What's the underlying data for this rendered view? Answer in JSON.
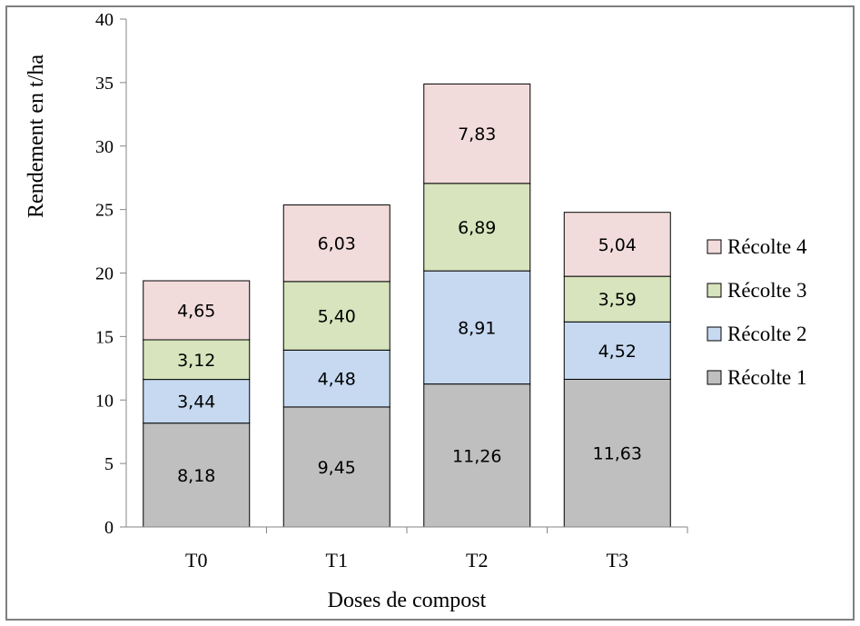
{
  "chart_data": {
    "type": "bar",
    "stacked": true,
    "title": "",
    "xlabel": "Doses de compost",
    "ylabel": "Rendement en t/ha",
    "categories": [
      "T0",
      "T1",
      "T2",
      "T3"
    ],
    "ylim": [
      0,
      40
    ],
    "yticks": [
      0,
      5,
      10,
      15,
      20,
      25,
      30,
      35,
      40
    ],
    "grid": false,
    "legend_position": "right",
    "series": [
      {
        "name": "Récolte 1",
        "color": "#bfbfbf",
        "values": [
          8.18,
          9.45,
          11.26,
          11.63
        ],
        "labels": [
          "8,18",
          "9,45",
          "11,26",
          "11,63"
        ]
      },
      {
        "name": "Récolte 2",
        "color": "#c6d9f1",
        "values": [
          3.44,
          4.48,
          8.91,
          4.52
        ],
        "labels": [
          "3,44",
          "4,48",
          "8,91",
          "4,52"
        ]
      },
      {
        "name": "Récolte 3",
        "color": "#d7e4bd",
        "values": [
          3.12,
          5.4,
          6.89,
          3.59
        ],
        "labels": [
          "3,12",
          "5,40",
          "6,89",
          "3,59"
        ]
      },
      {
        "name": "Récolte 4",
        "color": "#f2dcdb",
        "values": [
          4.65,
          6.03,
          7.83,
          5.04
        ],
        "labels": [
          "4,65",
          "6,03",
          "7,83",
          "5,04"
        ]
      }
    ]
  }
}
